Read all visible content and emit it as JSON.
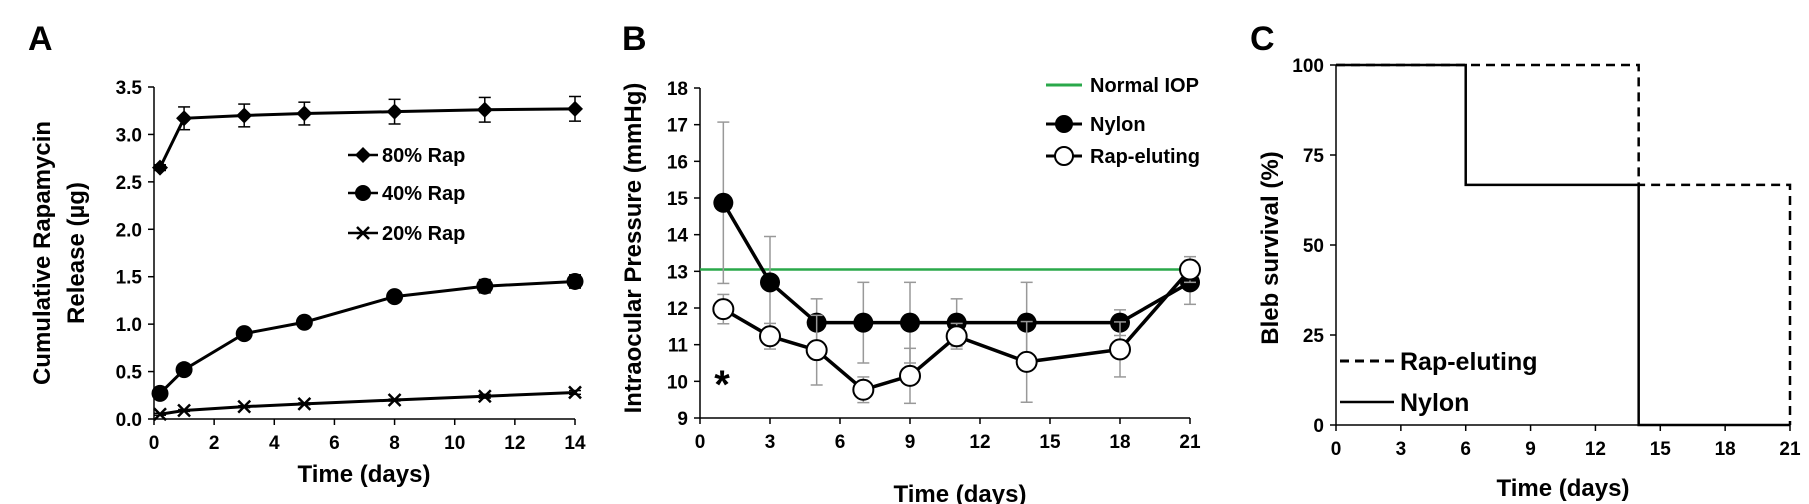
{
  "colors": {
    "normal_iop": "#2aa84a",
    "line": "#000000",
    "errorbar": "#999999"
  },
  "panels": {
    "a": "A",
    "b": "B",
    "c": "C"
  },
  "chart_data": [
    {
      "type": "line",
      "panel": "A",
      "xlabel": "Time (days)",
      "ylabel": [
        "Cumulative Rapamycin",
        "Release (µg)"
      ],
      "xlim": [
        0,
        14
      ],
      "ylim": [
        0,
        3.5
      ],
      "xticks": [
        "0",
        "2",
        "4",
        "6",
        "8",
        "10",
        "12",
        "14"
      ],
      "yticks": [
        "0.0",
        "0.5",
        "1.0",
        "1.5",
        "2.0",
        "2.5",
        "3.0",
        "3.5"
      ],
      "legend_position": "upper-right",
      "series": [
        {
          "name": "80% Rap",
          "marker": "diamond",
          "x": [
            0.2,
            1,
            3,
            5,
            8,
            11,
            14
          ],
          "y": [
            2.65,
            3.17,
            3.2,
            3.22,
            3.24,
            3.26,
            3.27
          ],
          "err": [
            0.03,
            0.12,
            0.12,
            0.12,
            0.13,
            0.13,
            0.13
          ]
        },
        {
          "name": "40% Rap",
          "marker": "circle-filled",
          "x": [
            0.2,
            1,
            3,
            5,
            8,
            11,
            14
          ],
          "y": [
            0.27,
            0.52,
            0.9,
            1.02,
            1.29,
            1.4,
            1.45
          ],
          "err": [
            0.02,
            0.03,
            0.04,
            0.04,
            0.05,
            0.07,
            0.07
          ]
        },
        {
          "name": "20% Rap",
          "marker": "x",
          "x": [
            0.2,
            1,
            3,
            5,
            8,
            11,
            14
          ],
          "y": [
            0.05,
            0.09,
            0.13,
            0.16,
            0.2,
            0.24,
            0.28
          ],
          "err": [
            0.01,
            0.01,
            0.01,
            0.01,
            0.01,
            0.02,
            0.02
          ]
        }
      ]
    },
    {
      "type": "line",
      "panel": "B",
      "xlabel": "Time (days)",
      "ylabel": "Intraocular Pressure (mmHg)",
      "xlim": [
        0,
        21
      ],
      "ylim": [
        9,
        18
      ],
      "xticks": [
        "0",
        "3",
        "6",
        "9",
        "12",
        "15",
        "18",
        "21"
      ],
      "yticks": [
        "9",
        "10",
        "11",
        "12",
        "13",
        "14",
        "15",
        "16",
        "17",
        "18"
      ],
      "legend_position": "upper-right",
      "annotation": "*",
      "reference_line": {
        "name": "Normal IOP",
        "y": 13.05
      },
      "series": [
        {
          "name": "Nylon",
          "marker": "circle-filled",
          "x": [
            1,
            3,
            5,
            7,
            9,
            11,
            14,
            18,
            21
          ],
          "y": [
            14.87,
            12.7,
            11.6,
            11.6,
            11.6,
            11.6,
            11.6,
            11.6,
            12.7
          ],
          "err": [
            2.2,
            1.25,
            0.65,
            1.1,
            1.1,
            0.65,
            1.1,
            0.35,
            0.6
          ]
        },
        {
          "name": "Rap-eluting",
          "marker": "circle-open",
          "x": [
            1,
            3,
            5,
            7,
            9,
            11,
            14,
            18,
            21
          ],
          "y": [
            11.97,
            11.23,
            10.85,
            9.77,
            10.15,
            11.23,
            10.53,
            10.87,
            13.05
          ],
          "err": [
            0.4,
            0.35,
            0.95,
            0.35,
            0.75,
            0.35,
            1.1,
            0.75,
            0.35
          ]
        }
      ]
    },
    {
      "type": "line",
      "panel": "C",
      "xlabel": "Time (days)",
      "ylabel": "Bleb survival (%)",
      "xlim": [
        0,
        21
      ],
      "ylim": [
        0,
        100
      ],
      "xticks": [
        "0",
        "3",
        "6",
        "9",
        "12",
        "15",
        "18",
        "21"
      ],
      "yticks": [
        "0",
        "25",
        "50",
        "75",
        "100"
      ],
      "legend_position": "lower-left",
      "step": true,
      "series": [
        {
          "name": "Rap-eluting",
          "style": "dashed",
          "x": [
            0,
            14,
            14,
            21,
            21
          ],
          "y": [
            100,
            100,
            66.7,
            66.7,
            0
          ]
        },
        {
          "name": "Nylon",
          "style": "solid",
          "x": [
            0,
            6,
            6,
            14,
            14,
            21
          ],
          "y": [
            100,
            100,
            66.7,
            66.7,
            0,
            0
          ]
        }
      ]
    }
  ]
}
